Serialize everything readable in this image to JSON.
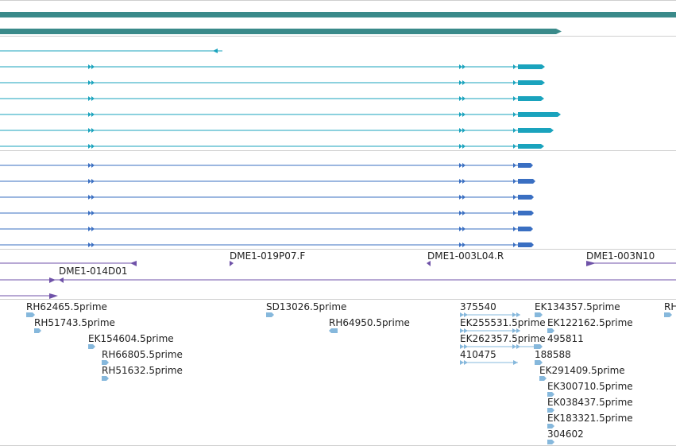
{
  "colors": {
    "genomic": "#3a8a8a",
    "transcript_cyan": "#1aa3bd",
    "transcript_blue": "#3a6fc2",
    "primer": "#6f52a8",
    "est": "#86b8dc",
    "separator": "#cfcfcf",
    "text": "#222222"
  },
  "primer_labels": [
    "DME1-019P07.F",
    "DME1-003L04.R",
    "DME1-003N10",
    "DME1-014D01"
  ],
  "est_labels": [
    "RH62465.5prime",
    "RH51743.5prime",
    "EK154604.5prime",
    "RH66805.5prime",
    "RH51632.5prime",
    "SD13026.5prime",
    "RH64950.5prime",
    "375540",
    "EK255531.5prime",
    "EK262357.5prime",
    "410475",
    "EK134357.5prime",
    "EK122162.5prime",
    "495811",
    "188588",
    "EK291409.5prime",
    "EK300710.5prime",
    "EK038437.5prime",
    "EK183321.5prime",
    "304602",
    "RH"
  ]
}
